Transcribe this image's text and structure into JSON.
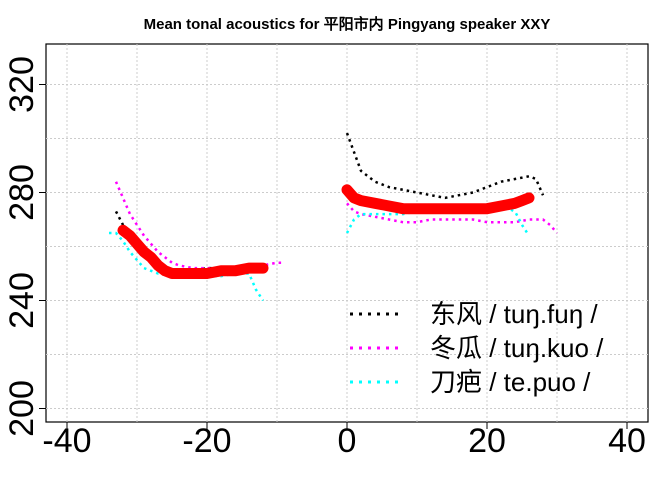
{
  "chart_data": {
    "type": "line",
    "title": "Mean tonal acoustics for 平阳市内 Pingyang speaker XXY",
    "xlabel": "",
    "ylabel": "",
    "xlim": [
      -43,
      43
    ],
    "ylim": [
      195,
      335
    ],
    "x_ticks": [
      -40,
      -20,
      0,
      20,
      40
    ],
    "y_ticks": [
      200,
      240,
      280,
      320
    ],
    "x_tick_labels": [
      "-40",
      "-20",
      "0",
      "20",
      "40"
    ],
    "y_tick_labels": [
      "200",
      "240",
      "280",
      "320"
    ],
    "grid": true,
    "legend_position": "bottom-right",
    "series": [
      {
        "name": "东风 / tuŋ.fuŋ /",
        "color": "#000000",
        "style": "dotted",
        "segments": [
          [
            [
              -33,
              273
            ],
            [
              -32,
              268
            ],
            [
              -31,
              264
            ],
            [
              -30,
              261
            ],
            [
              -29,
              258
            ],
            [
              -28,
              255
            ],
            [
              -27,
              252
            ],
            [
              -26,
              251
            ],
            [
              -25,
              250
            ],
            [
              -24,
              250
            ],
            [
              -22,
              251
            ],
            [
              -20,
              252
            ],
            [
              -18,
              252
            ],
            [
              -16,
              252
            ],
            [
              -14,
              253
            ],
            [
              -12,
              253
            ]
          ],
          [
            [
              0,
              302
            ],
            [
              1,
              295
            ],
            [
              2,
              288
            ],
            [
              4,
              284
            ],
            [
              6,
              282
            ],
            [
              8,
              281
            ],
            [
              10,
              280
            ],
            [
              12,
              279
            ],
            [
              14,
              278
            ],
            [
              16,
              279
            ],
            [
              18,
              280
            ],
            [
              20,
              282
            ],
            [
              22,
              284
            ],
            [
              24,
              285
            ],
            [
              26,
              286
            ],
            [
              27,
              285
            ],
            [
              28,
              279
            ]
          ]
        ]
      },
      {
        "name": "冬瓜 / tuŋ.kuo /",
        "color": "#ff00ff",
        "style": "dotted",
        "segments": [
          [
            [
              -33,
              284
            ],
            [
              -32,
              278
            ],
            [
              -31,
              272
            ],
            [
              -30,
              268
            ],
            [
              -29,
              264
            ],
            [
              -28,
              261
            ],
            [
              -27,
              258
            ],
            [
              -26,
              256
            ],
            [
              -25,
              254
            ],
            [
              -24,
              253
            ],
            [
              -22,
              252
            ],
            [
              -20,
              252
            ],
            [
              -18,
              252
            ],
            [
              -16,
              252
            ],
            [
              -14,
              253
            ],
            [
              -12,
              253
            ],
            [
              -10,
              254
            ],
            [
              -9,
              254
            ]
          ],
          [
            [
              0,
              276
            ],
            [
              1,
              273
            ],
            [
              2,
              272
            ],
            [
              4,
              271
            ],
            [
              6,
              270
            ],
            [
              8,
              269
            ],
            [
              10,
              269
            ],
            [
              12,
              270
            ],
            [
              14,
              270
            ],
            [
              16,
              270
            ],
            [
              18,
              270
            ],
            [
              20,
              269
            ],
            [
              22,
              269
            ],
            [
              24,
              269
            ],
            [
              26,
              270
            ],
            [
              28,
              270
            ],
            [
              29,
              268
            ],
            [
              30,
              265
            ]
          ]
        ]
      },
      {
        "name": "刀疤 / te.puo /",
        "color": "#00ffff",
        "style": "dotted",
        "segments": [
          [
            [
              -34,
              265
            ],
            [
              -33,
              265
            ],
            [
              -32,
              262
            ],
            [
              -31,
              258
            ],
            [
              -30,
              255
            ],
            [
              -29,
              252
            ],
            [
              -28,
              251
            ],
            [
              -27,
              250
            ],
            [
              -26,
              250
            ],
            [
              -25,
              249
            ],
            [
              -24,
              249
            ],
            [
              -22,
              249
            ],
            [
              -20,
              249
            ],
            [
              -18,
              249
            ],
            [
              -16,
              250
            ],
            [
              -14,
              250
            ],
            [
              -13,
              244
            ],
            [
              -12,
              240
            ]
          ],
          [
            [
              0,
              265
            ],
            [
              1,
              270
            ],
            [
              2,
              272
            ],
            [
              4,
              272
            ],
            [
              6,
              272
            ],
            [
              8,
              272
            ],
            [
              10,
              273
            ],
            [
              12,
              273
            ],
            [
              14,
              273
            ],
            [
              16,
              273
            ],
            [
              18,
              273
            ],
            [
              20,
              274
            ],
            [
              22,
              275
            ],
            [
              24,
              273
            ],
            [
              25,
              268
            ],
            [
              26,
              264
            ]
          ]
        ]
      },
      {
        "name": "",
        "color": "#ff0000",
        "style": "thick",
        "segments": [
          [
            [
              -32,
              266
            ],
            [
              -31,
              264
            ],
            [
              -30,
              261
            ],
            [
              -29,
              258
            ],
            [
              -28,
              256
            ],
            [
              -27,
              253
            ],
            [
              -26,
              251
            ],
            [
              -25,
              250
            ],
            [
              -24,
              250
            ],
            [
              -22,
              250
            ],
            [
              -20,
              250
            ],
            [
              -18,
              251
            ],
            [
              -16,
              251
            ],
            [
              -14,
              252
            ],
            [
              -12,
              252
            ]
          ],
          [
            [
              0,
              281
            ],
            [
              1,
              278
            ],
            [
              2,
              277
            ],
            [
              4,
              276
            ],
            [
              6,
              275
            ],
            [
              8,
              274
            ],
            [
              10,
              274
            ],
            [
              12,
              274
            ],
            [
              14,
              274
            ],
            [
              16,
              274
            ],
            [
              18,
              274
            ],
            [
              20,
              274
            ],
            [
              22,
              275
            ],
            [
              24,
              276
            ],
            [
              25,
              277
            ],
            [
              26,
              278
            ]
          ]
        ]
      }
    ],
    "legend_entries": [
      "东风 / tuŋ.fuŋ /",
      "冬瓜 / tuŋ.kuo /",
      "刀疤 / te.puo /"
    ]
  }
}
